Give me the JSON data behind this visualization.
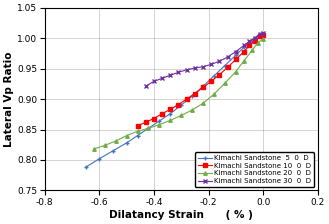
{
  "title": "",
  "xlabel": "Dilatancy Strain      ( % )",
  "ylabel": "Lateral Vp Ratio",
  "xlim": [
    -0.8,
    0.2
  ],
  "ylim": [
    0.75,
    1.05
  ],
  "xticks": [
    -0.8,
    -0.6,
    -0.4,
    -0.2,
    0.0,
    0.2
  ],
  "xtick_labels": [
    "-0.8",
    "-0.6",
    "-0.4",
    "-0.2",
    "0.0",
    "0.2"
  ],
  "yticks": [
    0.75,
    0.8,
    0.85,
    0.9,
    0.95,
    1.0,
    1.05
  ],
  "ytick_labels": [
    "0.75",
    "0.80",
    "0.85",
    "0.90",
    "0.95",
    "1.00",
    "1.05"
  ],
  "series": [
    {
      "label": "Kimachi Sandstone  5  0  D",
      "color": "#4472C4",
      "marker": "+",
      "x": [
        -0.65,
        -0.6,
        -0.55,
        -0.5,
        -0.46,
        -0.42,
        -0.38,
        -0.34,
        -0.3,
        -0.26,
        -0.22,
        -0.18,
        -0.14,
        -0.1,
        -0.07,
        -0.04,
        -0.02,
        -0.01,
        0.0
      ],
      "y": [
        0.788,
        0.802,
        0.815,
        0.828,
        0.84,
        0.852,
        0.864,
        0.876,
        0.89,
        0.905,
        0.921,
        0.938,
        0.955,
        0.972,
        0.985,
        0.996,
        1.004,
        1.007,
        1.007
      ]
    },
    {
      "label": "Kimachi Sandstone 10  0  D",
      "color": "#FF0000",
      "marker": "s",
      "x": [
        -0.46,
        -0.43,
        -0.4,
        -0.37,
        -0.34,
        -0.31,
        -0.28,
        -0.25,
        -0.22,
        -0.19,
        -0.16,
        -0.13,
        -0.1,
        -0.07,
        -0.05,
        -0.03,
        -0.01,
        0.0
      ],
      "y": [
        0.856,
        0.862,
        0.868,
        0.876,
        0.883,
        0.891,
        0.9,
        0.909,
        0.919,
        0.929,
        0.94,
        0.952,
        0.965,
        0.978,
        0.988,
        0.996,
        1.003,
        1.005
      ]
    },
    {
      "label": "Kimachi Sandstone 20  0  D",
      "color": "#70AD47",
      "marker": "^",
      "x": [
        -0.62,
        -0.58,
        -0.54,
        -0.5,
        -0.46,
        -0.42,
        -0.38,
        -0.34,
        -0.3,
        -0.26,
        -0.22,
        -0.18,
        -0.14,
        -0.1,
        -0.07,
        -0.04,
        -0.02,
        0.0
      ],
      "y": [
        0.818,
        0.824,
        0.831,
        0.84,
        0.847,
        0.852,
        0.858,
        0.865,
        0.873,
        0.882,
        0.893,
        0.908,
        0.926,
        0.945,
        0.963,
        0.98,
        0.992,
        0.999
      ]
    },
    {
      "label": "Kimachi Sandstone 30  0  D",
      "color": "#7030A0",
      "marker": "x",
      "x": [
        -0.43,
        -0.4,
        -0.37,
        -0.34,
        -0.31,
        -0.28,
        -0.25,
        -0.22,
        -0.19,
        -0.16,
        -0.13,
        -0.1,
        -0.07,
        -0.05,
        -0.03,
        -0.01,
        0.0
      ],
      "y": [
        0.921,
        0.929,
        0.934,
        0.939,
        0.944,
        0.948,
        0.951,
        0.953,
        0.957,
        0.962,
        0.969,
        0.978,
        0.988,
        0.995,
        1.001,
        1.006,
        1.008
      ]
    }
  ],
  "legend_loc": "lower right",
  "grid": true,
  "tick_font_size": 6.5,
  "label_font_size": 7.5,
  "legend_font_size": 5.0
}
